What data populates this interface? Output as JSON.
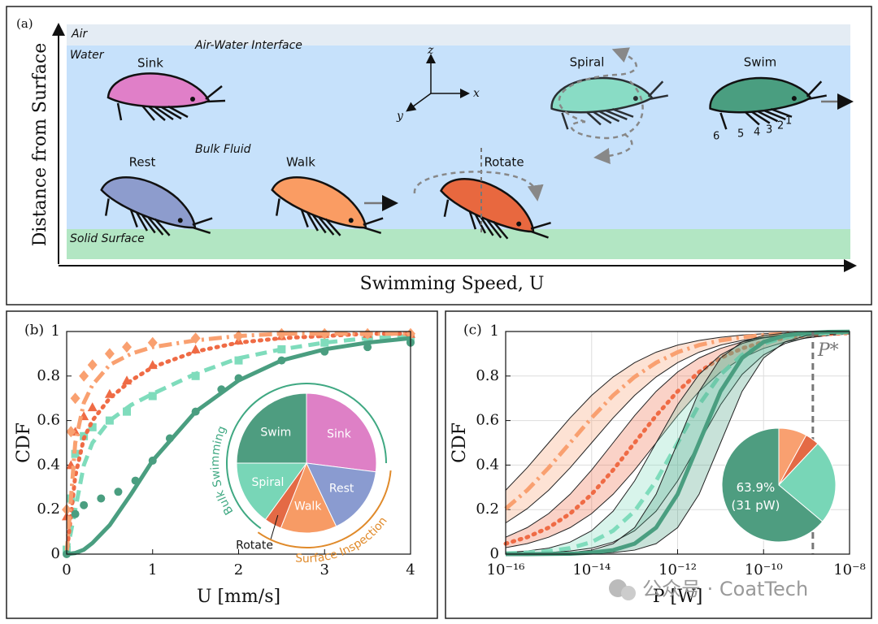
{
  "diagram": {
    "panel_label": "(a)",
    "y_axis_label": "Distance from Surface",
    "x_axis_label": "Swimming Speed, U",
    "regions": [
      "Air",
      "Water",
      "Air-Water Interface",
      "Bulk Fluid",
      "Solid Surface"
    ],
    "behaviors": [
      "Sink",
      "Rest",
      "Walk",
      "Rotate",
      "Spiral",
      "Swim"
    ],
    "axes": [
      "z",
      "x",
      "y"
    ],
    "legs": [
      "1",
      "2",
      "3",
      "4",
      "5",
      "6"
    ]
  },
  "chart_data": [
    {
      "type": "line",
      "panel_label": "(b)",
      "x_label": "U [mm/s]",
      "y_label": "CDF",
      "xlim": [
        0,
        4
      ],
      "xticks": [
        0,
        1,
        2,
        3,
        4
      ],
      "ylim": [
        0,
        1
      ],
      "yticks": [
        0,
        0.2,
        0.4,
        0.6,
        0.8,
        1
      ],
      "series": [
        {
          "color": "#7fdcbc",
          "marker": "square",
          "x": [
            0,
            0.05,
            0.1,
            0.2,
            0.3,
            0.5,
            0.7,
            1.0,
            1.5,
            2.0,
            2.5,
            3.0,
            3.5,
            4.0
          ],
          "values": [
            0.02,
            0.25,
            0.45,
            0.53,
            0.57,
            0.6,
            0.64,
            0.71,
            0.8,
            0.87,
            0.92,
            0.95,
            0.96,
            0.97
          ]
        },
        {
          "color": "#7fdcbc",
          "line": "dashed",
          "x": [
            0,
            0.1,
            0.2,
            0.3,
            0.5,
            0.75,
            1,
            1.5,
            2,
            2.5,
            3,
            3.5,
            4
          ],
          "values": [
            0,
            0.2,
            0.4,
            0.5,
            0.6,
            0.67,
            0.72,
            0.81,
            0.88,
            0.92,
            0.95,
            0.97,
            0.98
          ]
        },
        {
          "color": "#ef6b45",
          "marker": "triangle",
          "x": [
            0,
            0.05,
            0.1,
            0.2,
            0.3,
            0.5,
            0.7,
            1.0,
            1.5,
            2.0,
            2.5,
            3,
            3.5,
            4
          ],
          "values": [
            0.17,
            0.4,
            0.55,
            0.62,
            0.66,
            0.72,
            0.78,
            0.85,
            0.92,
            0.96,
            0.98,
            0.99,
            0.99,
            0.99
          ]
        },
        {
          "color": "#ef6b45",
          "line": "dotted",
          "x": [
            0,
            0.1,
            0.2,
            0.3,
            0.5,
            0.75,
            1,
            1.5,
            2,
            2.5,
            3,
            3.5,
            4
          ],
          "values": [
            0,
            0.35,
            0.52,
            0.6,
            0.7,
            0.78,
            0.84,
            0.91,
            0.95,
            0.97,
            0.98,
            0.99,
            0.99
          ]
        },
        {
          "color": "#f9a070",
          "marker": "diamond",
          "x": [
            0,
            0.05,
            0.1,
            0.2,
            0.3,
            0.5,
            0.7,
            1.0,
            1.5,
            2,
            2.5,
            3,
            3.5,
            4
          ],
          "values": [
            0.2,
            0.55,
            0.7,
            0.8,
            0.85,
            0.9,
            0.93,
            0.95,
            0.97,
            0.98,
            0.99,
            0.99,
            0.99,
            0.99
          ]
        },
        {
          "color": "#f9a070",
          "line": "dashdot",
          "x": [
            0,
            0.1,
            0.2,
            0.3,
            0.5,
            0.75,
            1,
            1.5,
            2,
            2.5,
            3,
            3.5,
            4
          ],
          "values": [
            0,
            0.5,
            0.68,
            0.76,
            0.85,
            0.9,
            0.93,
            0.96,
            0.98,
            0.99,
            0.99,
            0.99,
            0.99
          ]
        },
        {
          "color": "#4a9e80",
          "marker": "circle",
          "x": [
            0,
            0.1,
            0.2,
            0.4,
            0.6,
            0.8,
            1.0,
            1.2,
            1.5,
            1.8,
            2.0,
            2.5,
            3.0,
            3.5,
            4.0
          ],
          "values": [
            0,
            0.18,
            0.22,
            0.25,
            0.28,
            0.33,
            0.42,
            0.52,
            0.64,
            0.74,
            0.79,
            0.87,
            0.91,
            0.93,
            0.95
          ]
        },
        {
          "color": "#4a9e80",
          "line": "solid",
          "x": [
            0,
            0.1,
            0.2,
            0.3,
            0.5,
            0.75,
            1,
            1.5,
            2,
            2.5,
            3,
            3.5,
            4
          ],
          "values": [
            0,
            0.005,
            0.02,
            0.05,
            0.13,
            0.27,
            0.42,
            0.64,
            0.78,
            0.87,
            0.92,
            0.95,
            0.97
          ]
        }
      ]
    },
    {
      "type": "pie",
      "categories": [
        "Sink",
        "Rest",
        "Walk",
        "Rotate",
        "Spiral",
        "Swim"
      ],
      "values": [
        27,
        16,
        13,
        4,
        15,
        25
      ],
      "colors": [
        "#de80c6",
        "#8a9bd0",
        "#f79b65",
        "#e46a45",
        "#78d6b7",
        "#4e9d80"
      ],
      "annotations": [
        {
          "text": "Bulk Swimming",
          "color": "#3fa882"
        },
        {
          "text": "Surface Inspection",
          "color": "#e08a2a"
        }
      ]
    },
    {
      "type": "line",
      "panel_label": "(c)",
      "x_label": "P [W]",
      "y_label": "CDF",
      "log_x": true,
      "grid": true,
      "xlim": [
        1e-16,
        1e-08
      ],
      "xticks": [
        {
          "value": 1e-16,
          "label": "10⁻¹⁶"
        },
        {
          "value": 1e-14,
          "label": "10⁻¹⁴"
        },
        {
          "value": 1e-12,
          "label": "10⁻¹²"
        },
        {
          "value": 1e-10,
          "label": "10⁻¹⁰"
        },
        {
          "value": 1e-08,
          "label": "10⁻⁸"
        }
      ],
      "ylim": [
        0,
        1
      ],
      "yticks": [
        0,
        0.2,
        0.4,
        0.6,
        0.8,
        1
      ],
      "reference_line": {
        "value": 1.4e-09,
        "label": "P*"
      },
      "x": [
        1e-16,
        3.162e-16,
        1e-15,
        3.162e-15,
        1e-14,
        3.162e-14,
        1e-13,
        3.162e-13,
        1e-12,
        3.162e-12,
        1e-11,
        3.162e-11,
        1e-10,
        3.162e-10,
        1e-09,
        3.162e-09,
        1e-08
      ],
      "series": [
        {
          "color": "#f9a070",
          "line": "dashdot",
          "values": [
            0.204,
            0.287,
            0.388,
            0.5,
            0.612,
            0.713,
            0.796,
            0.86,
            0.907,
            0.939,
            0.96,
            0.974,
            0.984,
            0.99,
            0.993,
            0.996,
            0.997
          ],
          "upper": [
            0.287,
            0.388,
            0.5,
            0.612,
            0.713,
            0.796,
            0.86,
            0.907,
            0.939,
            0.96,
            0.974,
            0.984,
            0.99,
            0.993,
            0.996,
            0.997,
            0.998
          ],
          "lower": [
            0.14,
            0.204,
            0.287,
            0.388,
            0.5,
            0.612,
            0.713,
            0.796,
            0.86,
            0.907,
            0.939,
            0.96,
            0.974,
            0.984,
            0.99,
            0.993,
            0.996
          ]
        },
        {
          "color": "#ef6b45",
          "line": "dotted",
          "values": [
            0.047,
            0.076,
            0.119,
            0.182,
            0.269,
            0.378,
            0.5,
            0.622,
            0.731,
            0.818,
            0.881,
            0.924,
            0.953,
            0.971,
            0.982,
            0.989,
            0.993
          ],
          "upper": [
            0.076,
            0.119,
            0.182,
            0.269,
            0.378,
            0.5,
            0.622,
            0.731,
            0.818,
            0.881,
            0.924,
            0.953,
            0.971,
            0.982,
            0.989,
            0.993,
            0.996
          ],
          "lower": [
            0.029,
            0.047,
            0.076,
            0.119,
            0.182,
            0.269,
            0.378,
            0.5,
            0.622,
            0.731,
            0.818,
            0.881,
            0.924,
            0.953,
            0.971,
            0.982,
            0.989
          ]
        },
        {
          "color": "#7fdcbc",
          "line": "dashed",
          "values": [
            0.003,
            0.007,
            0.014,
            0.027,
            0.054,
            0.105,
            0.193,
            0.329,
            0.5,
            0.671,
            0.807,
            0.895,
            0.946,
            0.973,
            0.987,
            0.993,
            0.997
          ],
          "upper": [
            0.007,
            0.014,
            0.027,
            0.054,
            0.105,
            0.193,
            0.329,
            0.5,
            0.671,
            0.807,
            0.895,
            0.946,
            0.973,
            0.987,
            0.993,
            0.997,
            0.998
          ],
          "lower": [
            0.002,
            0.003,
            0.007,
            0.014,
            0.027,
            0.054,
            0.105,
            0.193,
            0.329,
            0.5,
            0.671,
            0.807,
            0.895,
            0.946,
            0.973,
            0.987,
            0.993
          ]
        },
        {
          "color": "#4a9e80",
          "line": "solid",
          "values": [
            0,
            0,
            0.001,
            0.002,
            0.007,
            0.018,
            0.047,
            0.119,
            0.269,
            0.5,
            0.731,
            0.881,
            0.953,
            0.982,
            0.993,
            0.998,
            0.999
          ],
          "upper": [
            0,
            0.001,
            0.002,
            0.007,
            0.018,
            0.047,
            0.119,
            0.269,
            0.5,
            0.731,
            0.881,
            0.953,
            0.982,
            0.993,
            0.998,
            0.999,
            1
          ],
          "lower": [
            0,
            0,
            0,
            0.001,
            0.002,
            0.007,
            0.018,
            0.047,
            0.119,
            0.269,
            0.5,
            0.731,
            0.881,
            0.953,
            0.982,
            0.993,
            0.998
          ]
        }
      ]
    },
    {
      "type": "pie",
      "values": [
        8,
        4,
        24.1,
        63.9
      ],
      "colors": [
        "#f9a070",
        "#e46a45",
        "#78d6b7",
        "#4e9d80"
      ],
      "value_labels": [
        null,
        null,
        null,
        "63.9%"
      ],
      "annotation": "(31 pW)"
    }
  ],
  "watermark": "公众号 · CoatTech"
}
